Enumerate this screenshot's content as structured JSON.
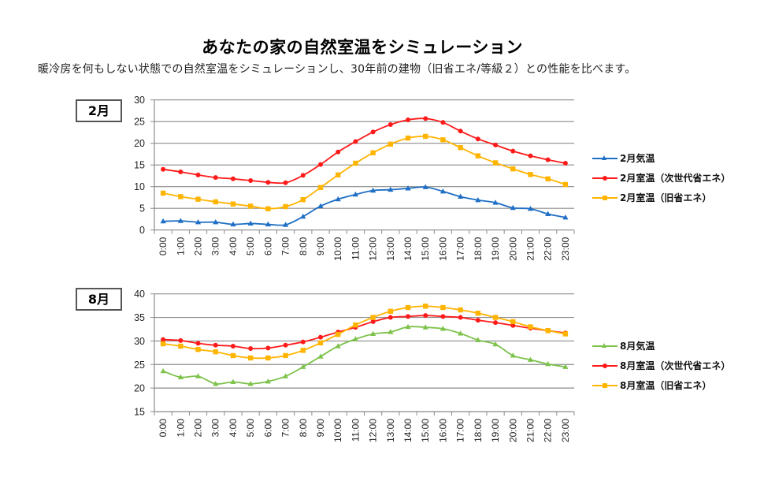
{
  "header": {
    "title": "あなたの家の自然室温をシミュレーション",
    "subtitle": "暖冷房を何もしない状態での自然室温をシミュレーションし、30年前の建物（旧省エネ/等級２）との性能を比べます。"
  },
  "colors": {
    "outdoor_feb": "#1F6FC5",
    "outdoor_aug": "#7DC24B",
    "next_gen": "#FF1A1A",
    "old": "#FFB400",
    "grid": "#8c8c8c"
  },
  "chart_data": [
    {
      "type": "line",
      "label": "2月",
      "title": "",
      "xlabel": "",
      "ylabel": "",
      "ylim": [
        0,
        30
      ],
      "yticks": [
        0,
        5,
        10,
        15,
        20,
        25,
        30
      ],
      "grid": true,
      "legend_position": "right",
      "categories": [
        "0:00",
        "1:00",
        "2:00",
        "3:00",
        "4:00",
        "5:00",
        "6:00",
        "7:00",
        "8:00",
        "9:00",
        "10:00",
        "11:00",
        "12:00",
        "13:00",
        "14:00",
        "15:00",
        "16:00",
        "17:00",
        "18:00",
        "19:00",
        "20:00",
        "21:00",
        "22:00",
        "23:00"
      ],
      "series": [
        {
          "name": "2月気温",
          "marker": "triangle",
          "color": "#1F6FC5",
          "values": [
            2.0,
            2.1,
            1.8,
            1.8,
            1.3,
            1.5,
            1.3,
            1.2,
            3.1,
            5.5,
            7.1,
            8.2,
            9.1,
            9.3,
            9.6,
            9.9,
            8.9,
            7.7,
            6.9,
            6.3,
            5.1,
            4.9,
            3.7,
            2.9
          ]
        },
        {
          "name": "2月室温（次世代省エネ）",
          "marker": "circle",
          "color": "#FF1A1A",
          "values": [
            14.0,
            13.4,
            12.7,
            12.1,
            11.8,
            11.4,
            11.0,
            10.9,
            12.6,
            15.1,
            18.0,
            20.4,
            22.6,
            24.3,
            25.4,
            25.7,
            24.8,
            22.8,
            21.0,
            19.6,
            18.2,
            17.1,
            16.2,
            15.4
          ]
        },
        {
          "name": "2月室温（旧省エネ）",
          "marker": "square",
          "color": "#FFB400",
          "values": [
            8.5,
            7.7,
            7.1,
            6.5,
            6.0,
            5.5,
            4.9,
            5.4,
            7.0,
            9.8,
            12.7,
            15.4,
            17.8,
            19.8,
            21.2,
            21.6,
            20.8,
            19.0,
            17.1,
            15.5,
            14.1,
            12.8,
            11.8,
            10.5
          ]
        }
      ]
    },
    {
      "type": "line",
      "label": "8月",
      "title": "",
      "xlabel": "",
      "ylabel": "",
      "ylim": [
        15,
        40
      ],
      "yticks": [
        15,
        20,
        25,
        30,
        35,
        40
      ],
      "grid": true,
      "legend_position": "right",
      "categories": [
        "0:00",
        "1:00",
        "2:00",
        "3:00",
        "4:00",
        "5:00",
        "6:00",
        "7:00",
        "8:00",
        "9:00",
        "10:00",
        "11:00",
        "12:00",
        "13:00",
        "14:00",
        "15:00",
        "16:00",
        "17:00",
        "18:00",
        "19:00",
        "20:00",
        "21:00",
        "22:00",
        "23:00"
      ],
      "series": [
        {
          "name": "8月気温",
          "marker": "triangle",
          "color": "#7DC24B",
          "values": [
            23.6,
            22.3,
            22.5,
            20.9,
            21.3,
            20.9,
            21.4,
            22.5,
            24.5,
            26.7,
            28.9,
            30.4,
            31.5,
            31.9,
            33.0,
            32.9,
            32.6,
            31.6,
            30.2,
            29.3,
            26.9,
            26.0,
            25.1,
            24.5
          ]
        },
        {
          "name": "8月室温（次世代省エネ）",
          "marker": "circle",
          "color": "#FF1A1A",
          "values": [
            30.3,
            30.1,
            29.5,
            29.1,
            28.9,
            28.4,
            28.5,
            29.1,
            29.8,
            30.8,
            31.9,
            32.9,
            34.1,
            35.0,
            35.2,
            35.4,
            35.2,
            35.0,
            34.4,
            33.9,
            33.3,
            32.7,
            32.2,
            31.7
          ]
        },
        {
          "name": "8月室温（旧省エネ）",
          "marker": "square",
          "color": "#FFB400",
          "values": [
            29.4,
            28.9,
            28.2,
            27.7,
            26.9,
            26.4,
            26.4,
            26.9,
            28.0,
            29.6,
            31.4,
            33.4,
            35.0,
            36.3,
            37.1,
            37.4,
            37.1,
            36.6,
            35.9,
            35.0,
            34.1,
            33.0,
            32.2,
            31.5
          ]
        }
      ]
    }
  ]
}
